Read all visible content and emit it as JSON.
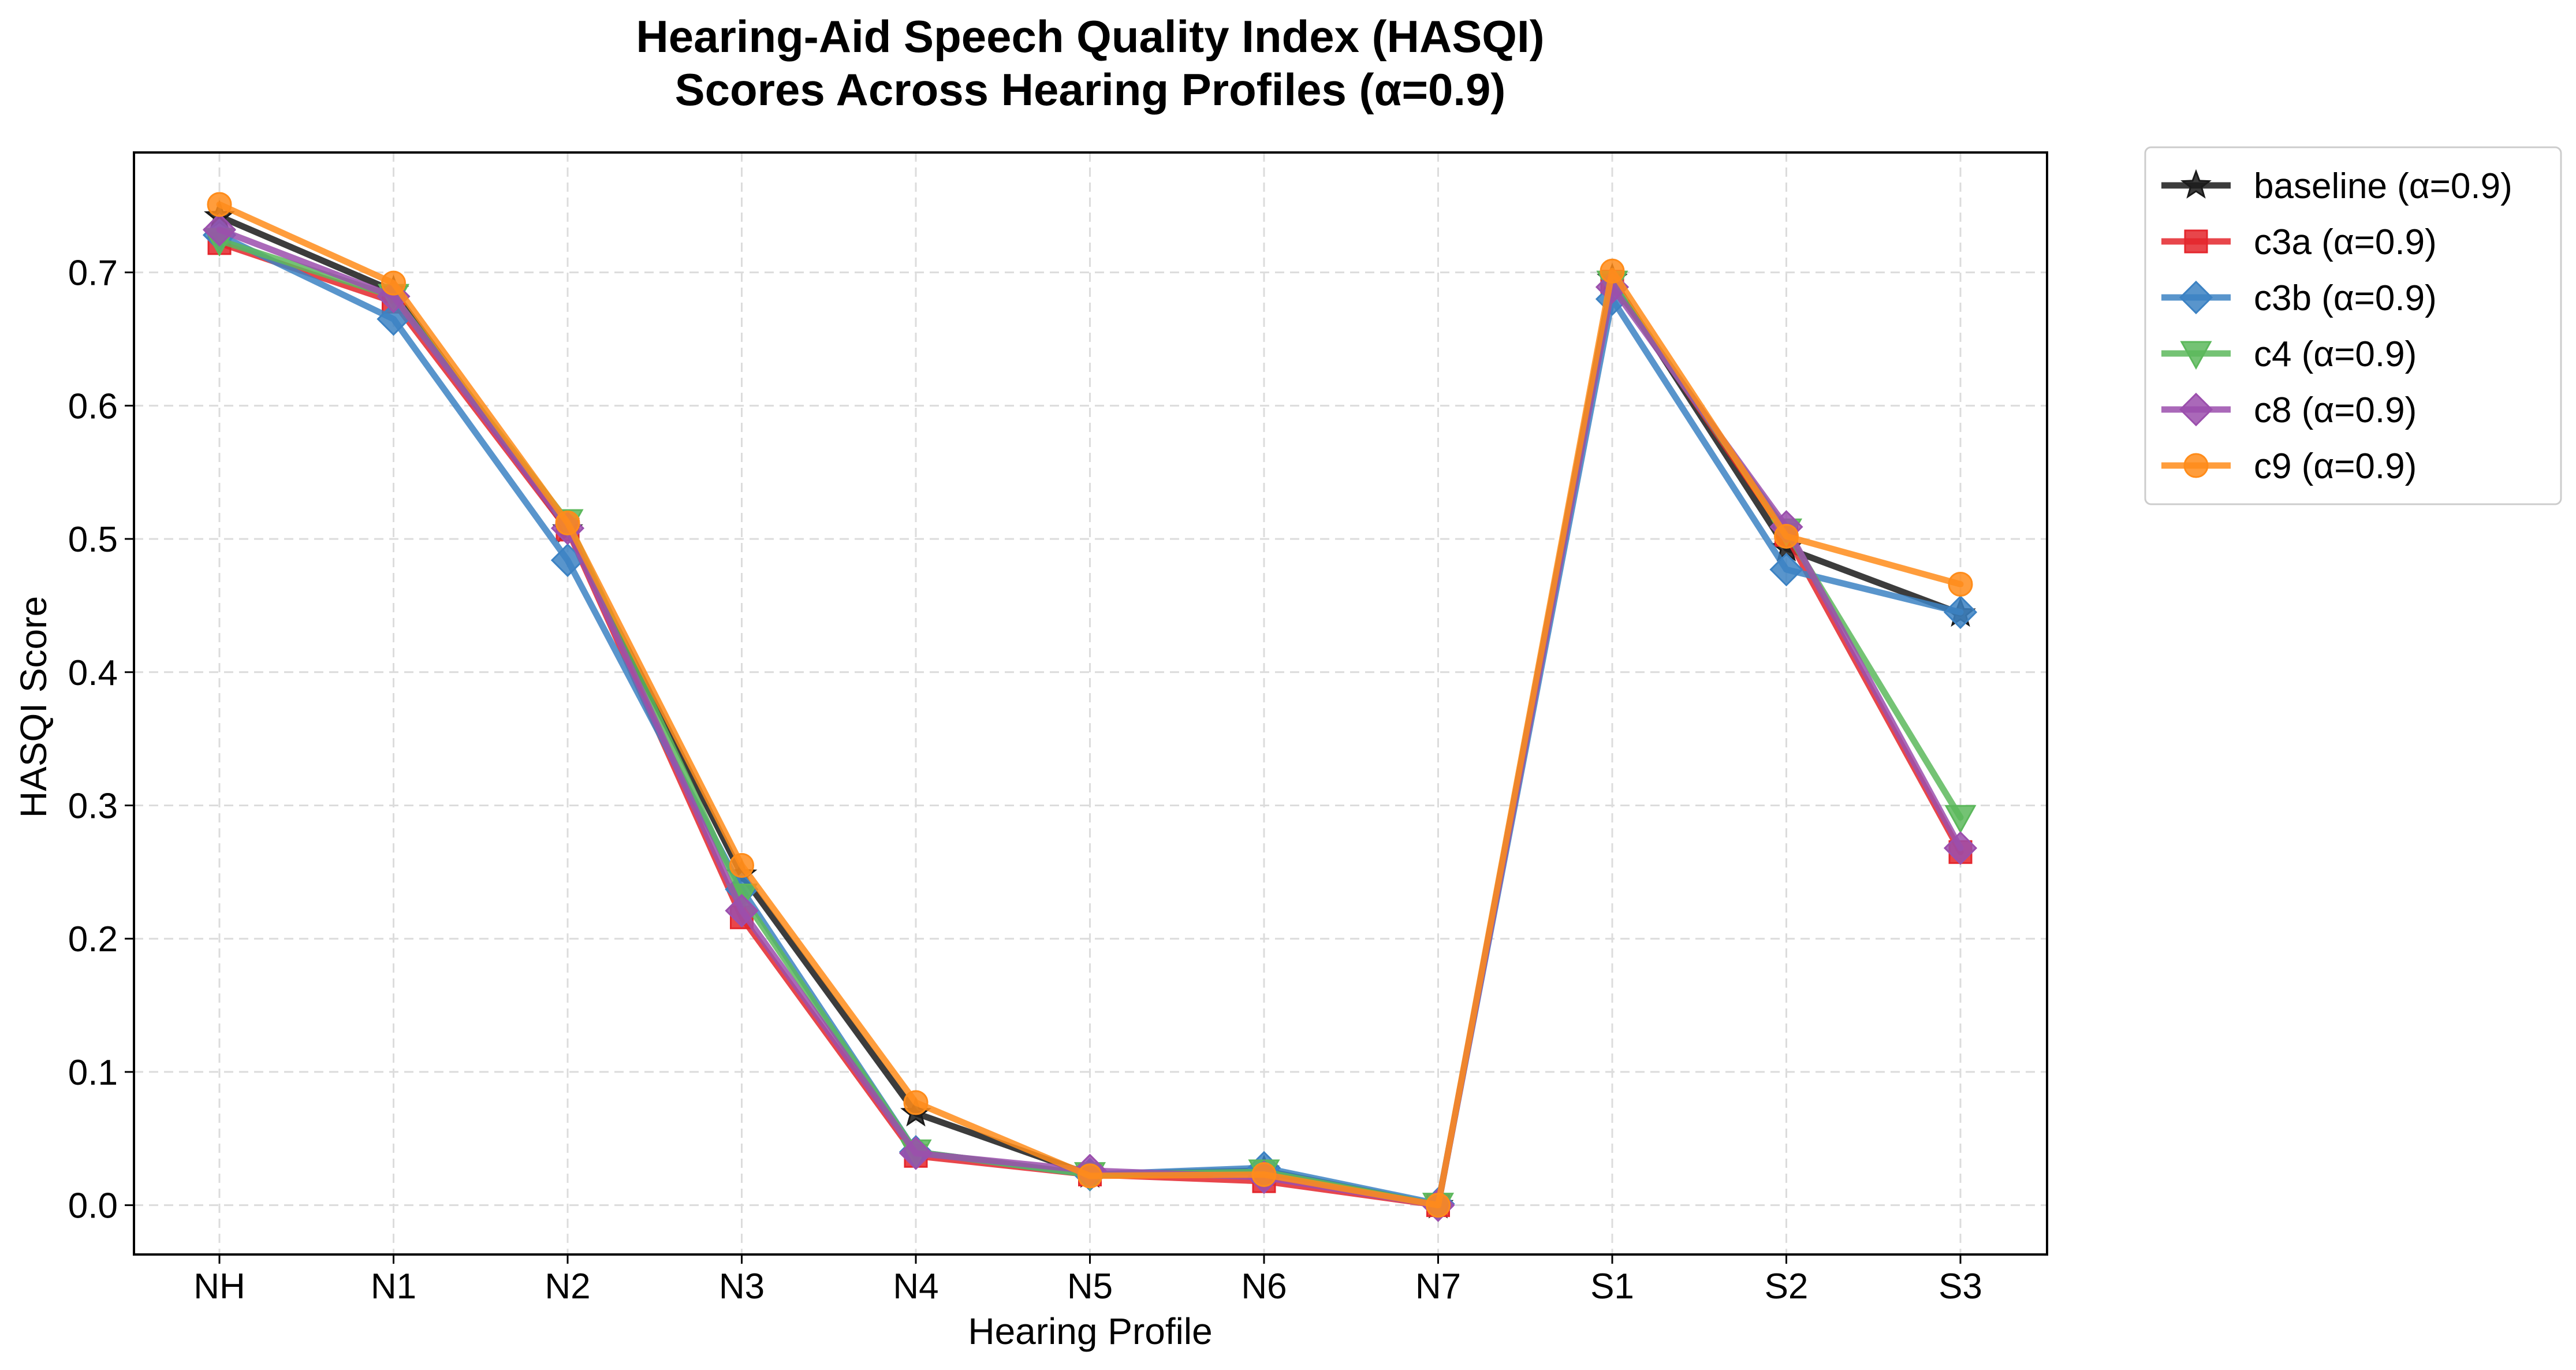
{
  "chart_data": {
    "type": "line",
    "title": "Hearing-Aid Speech Quality Index (HASQI)",
    "subtitle": "Scores Across Hearing Profiles (α=0.9)",
    "xlabel": "Hearing Profile",
    "ylabel": "HASQI Score",
    "categories": [
      "NH",
      "N1",
      "N2",
      "N3",
      "N4",
      "N5",
      "N6",
      "N7",
      "S1",
      "S2",
      "S3"
    ],
    "ylim": [
      -0.037,
      0.79
    ],
    "yticks": [
      "0.0",
      "0.1",
      "0.2",
      "0.3",
      "0.4",
      "0.5",
      "0.6",
      "0.7"
    ],
    "grid": true,
    "legend_position": "outside-top-right",
    "series": [
      {
        "name": "baseline (α=0.9)",
        "color": "#1a1a1a",
        "marker": "star",
        "values": [
          0.742,
          0.686,
          0.507,
          0.248,
          0.069,
          0.023,
          0.026,
          0.0,
          0.695,
          0.493,
          0.444
        ]
      },
      {
        "name": "c3a (α=0.9)",
        "color": "#e4262c",
        "marker": "square",
        "values": [
          0.722,
          0.678,
          0.507,
          0.216,
          0.037,
          0.023,
          0.018,
          0.0,
          0.693,
          0.503,
          0.265
        ]
      },
      {
        "name": "c3b (α=0.9)",
        "color": "#3c82c3",
        "marker": "diamond",
        "values": [
          0.728,
          0.665,
          0.484,
          0.237,
          0.04,
          0.023,
          0.028,
          0.001,
          0.68,
          0.477,
          0.445
        ]
      },
      {
        "name": "c4 (α=0.9)",
        "color": "#5cb85c",
        "marker": "triangle-down",
        "values": [
          0.724,
          0.682,
          0.513,
          0.232,
          0.04,
          0.023,
          0.025,
          0.0,
          0.692,
          0.506,
          0.291
        ]
      },
      {
        "name": "c8 (α=0.9)",
        "color": "#9b4fad",
        "marker": "diamond",
        "values": [
          0.732,
          0.682,
          0.508,
          0.221,
          0.039,
          0.026,
          0.021,
          0.0,
          0.689,
          0.509,
          0.268
        ]
      },
      {
        "name": "c9 (α=0.9)",
        "color": "#ff8c1a",
        "marker": "circle",
        "values": [
          0.751,
          0.692,
          0.512,
          0.255,
          0.077,
          0.022,
          0.023,
          0.0,
          0.701,
          0.502,
          0.466
        ]
      }
    ]
  }
}
